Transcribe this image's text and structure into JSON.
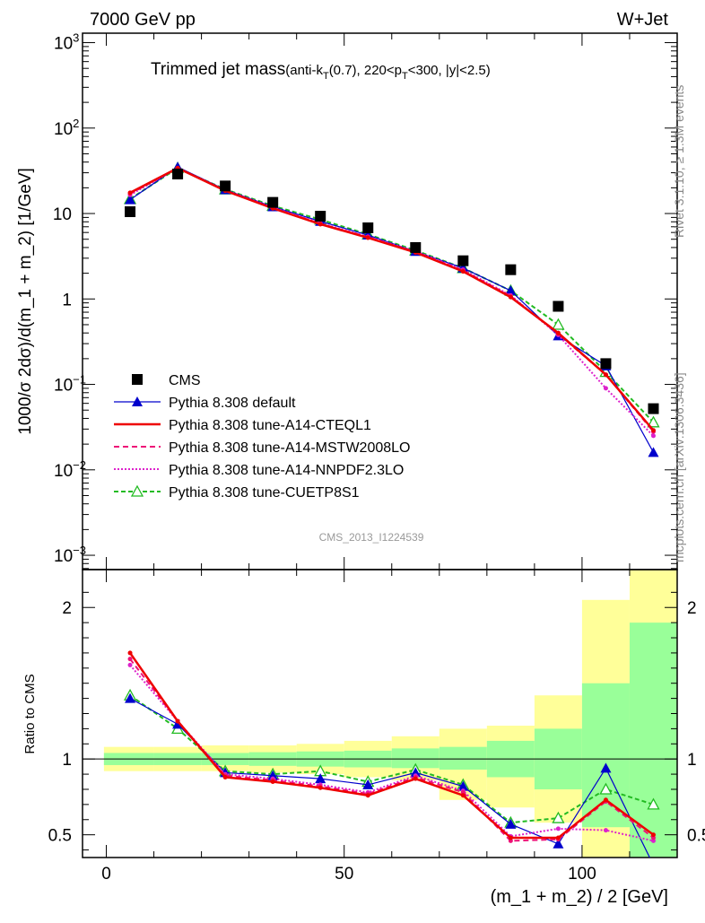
{
  "header": {
    "energy_label": "7000 GeV pp",
    "process_label": "W+Jet",
    "title_main": "Trimmed jet mass",
    "title_detail_a": "(anti-k",
    "title_sub_t1": "T",
    "title_detail_b": "(0.7), 220<p",
    "title_sub_t2": "T",
    "title_detail_c": "<300, |y|<2.5)",
    "watermark": "CMS_2013_I1224539",
    "side_rivet": "Rivet 3.1.10, ≥ 1.3M events",
    "side_mcplots": "mcplots.cern.ch [arXiv:1306.3436]"
  },
  "colors": {
    "cms": "#000000",
    "default": "#0000cc",
    "cteql1": "#ee0000",
    "mstw": "#ee1177",
    "nnpdf": "#dd22cc",
    "cuetp8s1": "#22bb22",
    "band_outer": "#ffff99",
    "band_inner": "#99ff99"
  },
  "chart_data": [
    {
      "type": "line",
      "panel": "main",
      "title": "Trimmed jet mass(anti-kT(0.7), 220<pT<300, |y|<2.5)",
      "ylabel": "1000/σ 2dσ)/d(m_1 + m_2) [1/GeV]",
      "yscale": "log",
      "ylim": [
        0.0007,
        1300
      ],
      "xlim": [
        -5,
        120
      ],
      "y_ticks": [
        {
          "v": 0.001,
          "base": "10",
          "exp": "−3"
        },
        {
          "v": 0.01,
          "base": "10",
          "exp": "−2"
        },
        {
          "v": 0.1,
          "base": "10",
          "exp": "−1"
        },
        {
          "v": 1,
          "base": "1",
          "exp": ""
        },
        {
          "v": 10,
          "base": "10",
          "exp": ""
        },
        {
          "v": 100,
          "base": "10",
          "exp": "2"
        },
        {
          "v": 1000,
          "base": "10",
          "exp": "3"
        }
      ],
      "x": [
        5,
        15,
        25,
        35,
        45,
        55,
        65,
        75,
        85,
        95,
        105,
        115
      ],
      "series": [
        {
          "key": "cms",
          "name": "CMS",
          "marker": "square",
          "values": [
            10.5,
            29,
            21,
            13.5,
            9.3,
            6.8,
            4.0,
            2.8,
            2.2,
            0.82,
            0.175,
            0.052
          ]
        },
        {
          "key": "default",
          "name": "Pythia 8.308 default",
          "marker": "triangle",
          "dash": "",
          "values": [
            14.5,
            35,
            19,
            12,
            8.1,
            5.6,
            3.6,
            2.3,
            1.25,
            0.37,
            0.165,
            0.016
          ]
        },
        {
          "key": "cteql1",
          "name": "Pythia 8.308 tune-A14-CTEQL1",
          "marker": "none",
          "dash": "",
          "values": [
            17.5,
            34,
            18.5,
            11.5,
            7.5,
            5.2,
            3.5,
            2.1,
            1.05,
            0.4,
            0.13,
            0.029
          ]
        },
        {
          "key": "mstw",
          "name": "Pythia 8.308 tune-A14-MSTW2008LO",
          "marker": "none",
          "dash": "6,4",
          "values": [
            17,
            34,
            18.6,
            11.6,
            7.6,
            5.3,
            3.55,
            2.15,
            1.08,
            0.39,
            0.13,
            0.028
          ]
        },
        {
          "key": "nnpdf",
          "name": "Pythia 8.308 tune-A14-NNPDF2.3LO",
          "marker": "none",
          "dash": "2,2",
          "values": [
            16.5,
            34,
            18.8,
            11.8,
            7.7,
            5.35,
            3.6,
            2.2,
            1.1,
            0.38,
            0.09,
            0.025
          ]
        },
        {
          "key": "cuetp8s1",
          "name": "Pythia 8.308 tune-CUETP8S1",
          "marker": "triangle-open",
          "dash": "5,3",
          "values": [
            14.8,
            34,
            19.2,
            12.3,
            8.5,
            5.7,
            3.7,
            2.3,
            1.25,
            0.5,
            0.14,
            0.036
          ]
        }
      ]
    },
    {
      "type": "line",
      "panel": "ratio",
      "ylabel": "Ratio to CMS",
      "xlabel": "(m_1 + m_2) / 2 [GeV]",
      "ylim": [
        0.35,
        2.25
      ],
      "xlim": [
        -5,
        120
      ],
      "x_ticks": [
        0,
        50,
        100
      ],
      "y_ticks": [
        0.5,
        1,
        2
      ],
      "bins": [
        [
          -0.5,
          10
        ],
        [
          10,
          20
        ],
        [
          20,
          30
        ],
        [
          30,
          40
        ],
        [
          40,
          50
        ],
        [
          50,
          60
        ],
        [
          60,
          70
        ],
        [
          70,
          80
        ],
        [
          80,
          90
        ],
        [
          90,
          100
        ],
        [
          100,
          110
        ],
        [
          110,
          120
        ]
      ],
      "band_inner": [
        [
          0.96,
          1.04
        ],
        [
          0.96,
          1.04
        ],
        [
          0.96,
          1.04
        ],
        [
          0.955,
          1.045
        ],
        [
          0.95,
          1.05
        ],
        [
          0.945,
          1.055
        ],
        [
          0.94,
          1.07
        ],
        [
          0.93,
          1.08
        ],
        [
          0.88,
          1.12
        ],
        [
          0.8,
          1.2
        ],
        [
          0.55,
          1.5
        ],
        [
          0.3,
          1.9
        ]
      ],
      "band_outer": [
        [
          0.92,
          1.08
        ],
        [
          0.92,
          1.08
        ],
        [
          0.92,
          1.09
        ],
        [
          0.91,
          1.09
        ],
        [
          0.9,
          1.1
        ],
        [
          0.88,
          1.12
        ],
        [
          0.86,
          1.15
        ],
        [
          0.73,
          1.2
        ],
        [
          0.68,
          1.22
        ],
        [
          0.58,
          1.42
        ],
        [
          0.35,
          2.05
        ],
        [
          0.3,
          2.3
        ]
      ],
      "x": [
        5,
        15,
        25,
        35,
        45,
        55,
        65,
        75,
        85,
        95,
        105,
        115
      ],
      "series": [
        {
          "key": "default",
          "name": "Pythia 8.308 default",
          "marker": "triangle",
          "dash": "",
          "values": [
            1.4,
            1.23,
            0.91,
            0.89,
            0.87,
            0.83,
            0.91,
            0.82,
            0.57,
            0.44,
            0.94,
            0.3
          ]
        },
        {
          "key": "cteql1",
          "name": "Pythia 8.308 tune-A14-CTEQL1",
          "marker": "none",
          "dash": "",
          "values": [
            1.7,
            1.25,
            0.88,
            0.85,
            0.81,
            0.76,
            0.87,
            0.76,
            0.48,
            0.48,
            0.73,
            0.5
          ]
        },
        {
          "key": "mstw",
          "name": "Pythia 8.308 tune-A14-MSTW2008LO",
          "marker": "none",
          "dash": "6,4",
          "values": [
            1.66,
            1.25,
            0.89,
            0.86,
            0.82,
            0.77,
            0.88,
            0.78,
            0.46,
            0.47,
            0.72,
            0.48
          ]
        },
        {
          "key": "nnpdf",
          "name": "Pythia 8.308 tune-A14-NNPDF2.3LO",
          "marker": "none",
          "dash": "2,2",
          "values": [
            1.62,
            1.25,
            0.9,
            0.87,
            0.83,
            0.78,
            0.89,
            0.79,
            0.49,
            0.54,
            0.53,
            0.46
          ]
        },
        {
          "key": "cuetp8s1",
          "name": "Pythia 8.308 tune-CUETP8S1",
          "marker": "triangle-open",
          "dash": "5,3",
          "values": [
            1.42,
            1.2,
            0.92,
            0.9,
            0.92,
            0.85,
            0.93,
            0.83,
            0.58,
            0.61,
            0.8,
            0.7
          ]
        }
      ]
    }
  ]
}
